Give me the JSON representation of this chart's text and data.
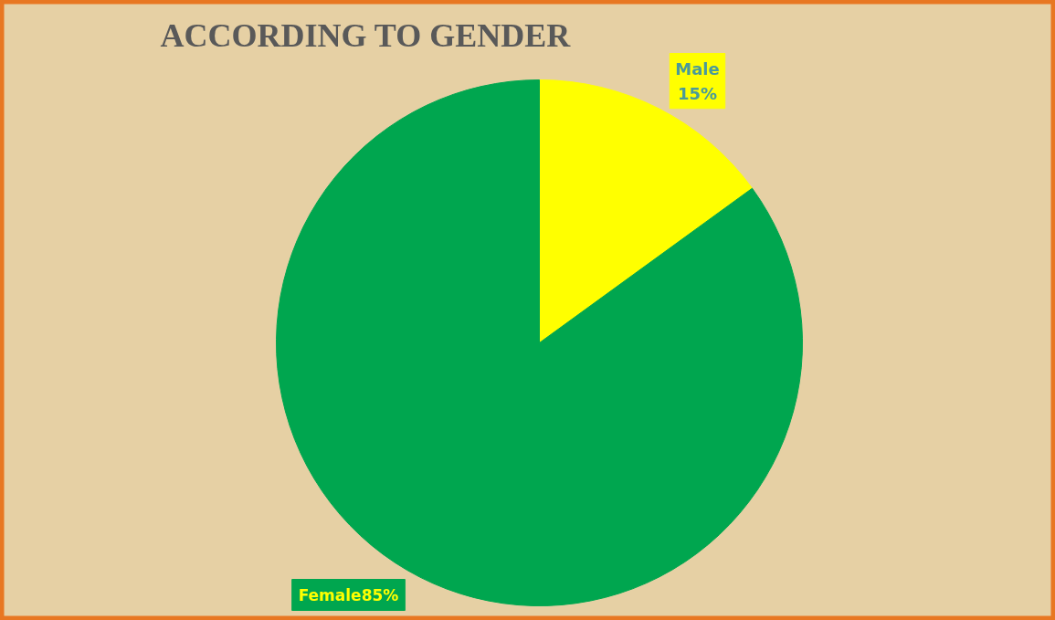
{
  "chart_data": {
    "type": "pie",
    "title": "ACCORDING TO GENDER",
    "categories": [
      "Male",
      "Female"
    ],
    "values": [
      15,
      85
    ],
    "colors": [
      "#ffff00",
      "#00a64f"
    ],
    "value_labels": [
      "15%",
      "85%"
    ]
  }
}
